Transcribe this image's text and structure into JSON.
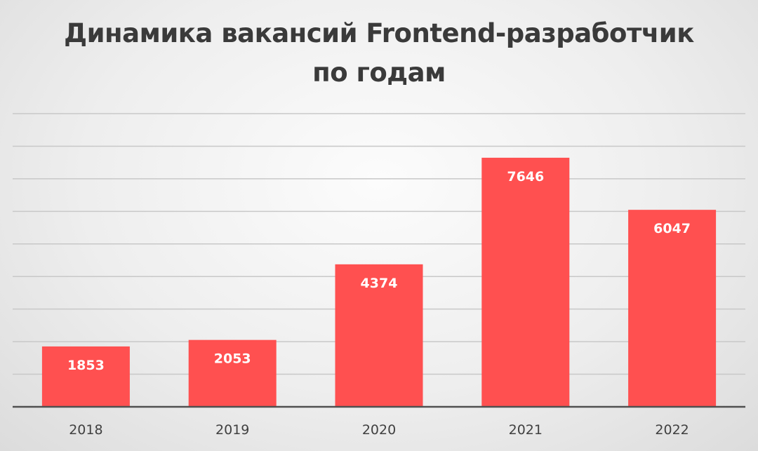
{
  "chart_data": {
    "type": "bar",
    "title_line1": "Динамика вакансий Frontend-разработчик",
    "title_line2": "по годам",
    "categories": [
      "2018",
      "2019",
      "2020",
      "2021",
      "2022"
    ],
    "values": [
      1853,
      2053,
      4374,
      7646,
      6047
    ],
    "xlabel": "",
    "ylabel": "",
    "ylim": [
      0,
      9000
    ],
    "grid": true,
    "data_labels": true,
    "legend": "none",
    "colors": {
      "bar": "#ff5050",
      "label": "#ffffff",
      "grid": "#c8c8c8",
      "axis": "#505050",
      "tick": "#404040"
    }
  }
}
